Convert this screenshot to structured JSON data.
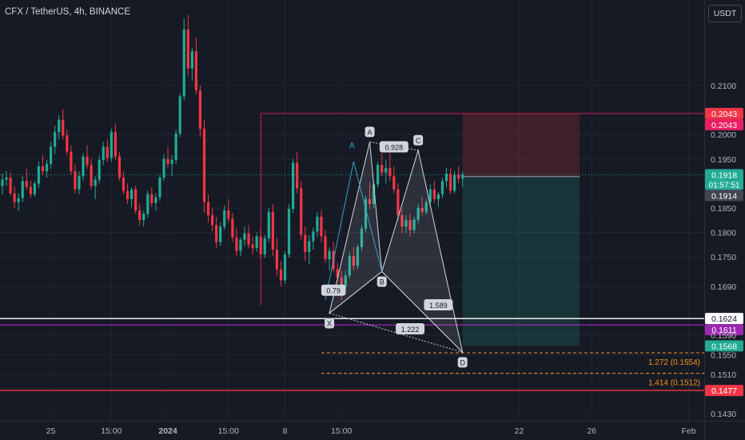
{
  "title": "CFX / TetherUS, 4h, BINANCE",
  "currency": "USDT",
  "colors": {
    "up": "#22ab94",
    "down": "#f23645",
    "bg": "#161a25",
    "grid": "#232632",
    "text": "#b2b5be",
    "pattern": "#d1d4dc",
    "fib": "#f7931a"
  },
  "chart_data": {
    "type": "candlestick",
    "symbol": "CFX / TetherUS",
    "interval": "4h",
    "exchange": "BINANCE",
    "ylim": [
      0.1415,
      0.2275
    ],
    "y_ticks": [
      0.21,
      0.2,
      0.195,
      0.185,
      0.18,
      0.175,
      0.169,
      0.159,
      0.155,
      0.151,
      0.143
    ],
    "x_ticks": [
      "25",
      "15:00",
      "2024",
      "15:00",
      "8",
      "15:00",
      "22",
      "26",
      "Feb"
    ],
    "x_tick_bars": [
      12,
      27,
      41,
      56,
      70,
      84,
      128,
      146,
      170
    ],
    "bar_count": 172,
    "candles": [
      [
        0.1895,
        0.192,
        0.1878,
        0.1908
      ],
      [
        0.1908,
        0.1925,
        0.1895,
        0.1912
      ],
      [
        0.1912,
        0.1922,
        0.1875,
        0.188
      ],
      [
        0.188,
        0.1895,
        0.185,
        0.1862
      ],
      [
        0.1862,
        0.188,
        0.1845,
        0.187
      ],
      [
        0.187,
        0.1915,
        0.1862,
        0.1905
      ],
      [
        0.1905,
        0.193,
        0.1888,
        0.1893
      ],
      [
        0.1893,
        0.1906,
        0.187,
        0.1878
      ],
      [
        0.1878,
        0.1905,
        0.1872,
        0.19
      ],
      [
        0.19,
        0.1945,
        0.189,
        0.1935
      ],
      [
        0.1935,
        0.1958,
        0.1918,
        0.1925
      ],
      [
        0.1925,
        0.1948,
        0.1912,
        0.194
      ],
      [
        0.194,
        0.1985,
        0.193,
        0.1975
      ],
      [
        0.1975,
        0.2018,
        0.196,
        0.2005
      ],
      [
        0.2005,
        0.204,
        0.199,
        0.203
      ],
      [
        0.203,
        0.2052,
        0.199,
        0.1998
      ],
      [
        0.1998,
        0.201,
        0.1958,
        0.1965
      ],
      [
        0.1965,
        0.1978,
        0.1918,
        0.1925
      ],
      [
        0.1925,
        0.1938,
        0.188,
        0.1888
      ],
      [
        0.1888,
        0.1925,
        0.1878,
        0.1915
      ],
      [
        0.1915,
        0.1962,
        0.1905,
        0.1955
      ],
      [
        0.1955,
        0.1978,
        0.193,
        0.1938
      ],
      [
        0.1938,
        0.195,
        0.1888,
        0.1895
      ],
      [
        0.1895,
        0.1915,
        0.1868,
        0.1908
      ],
      [
        0.1908,
        0.1958,
        0.19,
        0.1948
      ],
      [
        0.1948,
        0.1985,
        0.1938,
        0.1975
      ],
      [
        0.1975,
        0.199,
        0.1945,
        0.1952
      ],
      [
        0.1952,
        0.2012,
        0.1945,
        0.2005
      ],
      [
        0.2005,
        0.2022,
        0.1948,
        0.1955
      ],
      [
        0.1955,
        0.1965,
        0.1905,
        0.1912
      ],
      [
        0.1912,
        0.1925,
        0.1878,
        0.1885
      ],
      [
        0.1885,
        0.19,
        0.1858,
        0.1868
      ],
      [
        0.1868,
        0.1892,
        0.1852,
        0.1888
      ],
      [
        0.1888,
        0.1896,
        0.1838,
        0.1845
      ],
      [
        0.1845,
        0.1858,
        0.1815,
        0.1825
      ],
      [
        0.1825,
        0.1845,
        0.1812,
        0.1838
      ],
      [
        0.1838,
        0.1885,
        0.183,
        0.1878
      ],
      [
        0.1878,
        0.1892,
        0.1852,
        0.186
      ],
      [
        0.186,
        0.188,
        0.1845,
        0.1872
      ],
      [
        0.1872,
        0.1918,
        0.1865,
        0.1912
      ],
      [
        0.1912,
        0.196,
        0.1905,
        0.195
      ],
      [
        0.195,
        0.1975,
        0.1932,
        0.194
      ],
      [
        0.194,
        0.1958,
        0.1915,
        0.1948
      ],
      [
        0.1948,
        0.201,
        0.194,
        0.2002
      ],
      [
        0.2002,
        0.2085,
        0.1995,
        0.2078
      ],
      [
        0.2078,
        0.2238,
        0.207,
        0.2215
      ],
      [
        0.2215,
        0.2245,
        0.212,
        0.2135
      ],
      [
        0.2135,
        0.2178,
        0.211,
        0.217
      ],
      [
        0.217,
        0.2198,
        0.2082,
        0.209
      ],
      [
        0.209,
        0.21,
        0.1995,
        0.2012
      ],
      [
        0.2012,
        0.203,
        0.184,
        0.1862
      ],
      [
        0.1862,
        0.1878,
        0.182,
        0.1835
      ],
      [
        0.1835,
        0.185,
        0.1802,
        0.1815
      ],
      [
        0.1815,
        0.1832,
        0.1768,
        0.178
      ],
      [
        0.178,
        0.182,
        0.1772,
        0.1812
      ],
      [
        0.1812,
        0.1855,
        0.1805,
        0.1845
      ],
      [
        0.1845,
        0.1868,
        0.182,
        0.1828
      ],
      [
        0.1828,
        0.184,
        0.178,
        0.179
      ],
      [
        0.179,
        0.1808,
        0.1752,
        0.1762
      ],
      [
        0.1762,
        0.179,
        0.1752,
        0.1785
      ],
      [
        0.1785,
        0.1812,
        0.1772,
        0.1798
      ],
      [
        0.1798,
        0.1815,
        0.1768,
        0.1775
      ],
      [
        0.1775,
        0.1792,
        0.1755,
        0.1768
      ],
      [
        0.1768,
        0.18,
        0.176,
        0.1792
      ],
      [
        0.1792,
        0.1808,
        0.1745,
        0.1755
      ],
      [
        0.1755,
        0.1795,
        0.1748,
        0.1788
      ],
      [
        0.1788,
        0.185,
        0.178,
        0.1842
      ],
      [
        0.1842,
        0.1858,
        0.1752,
        0.1765
      ],
      [
        0.1765,
        0.179,
        0.1712,
        0.1725
      ],
      [
        0.1725,
        0.1742,
        0.169,
        0.1702
      ],
      [
        0.1702,
        0.1762,
        0.1695,
        0.1755
      ],
      [
        0.1755,
        0.1858,
        0.1748,
        0.1848
      ],
      [
        0.1848,
        0.195,
        0.184,
        0.1942
      ],
      [
        0.1942,
        0.1965,
        0.188,
        0.189
      ],
      [
        0.189,
        0.1905,
        0.1785,
        0.1795
      ],
      [
        0.1795,
        0.1812,
        0.1742,
        0.176
      ],
      [
        0.176,
        0.1795,
        0.1735,
        0.1782
      ],
      [
        0.1782,
        0.181,
        0.1765,
        0.1802
      ],
      [
        0.1802,
        0.1842,
        0.179,
        0.1832
      ],
      [
        0.1832,
        0.1845,
        0.178,
        0.1792
      ],
      [
        0.1792,
        0.1805,
        0.1738,
        0.1745
      ],
      [
        0.1745,
        0.177,
        0.1722,
        0.1762
      ],
      [
        0.1762,
        0.178,
        0.1718,
        0.1725
      ],
      [
        0.1725,
        0.1738,
        0.1698,
        0.1708
      ],
      [
        0.1708,
        0.1722,
        0.1662,
        0.1688
      ],
      [
        0.1688,
        0.1722,
        0.1675,
        0.1712
      ],
      [
        0.1712,
        0.176,
        0.1705,
        0.1752
      ],
      [
        0.1752,
        0.177,
        0.1722,
        0.1732
      ],
      [
        0.1732,
        0.1775,
        0.1725,
        0.177
      ],
      [
        0.177,
        0.1815,
        0.1762,
        0.1808
      ],
      [
        0.1808,
        0.1875,
        0.18,
        0.1868
      ],
      [
        0.1868,
        0.1902,
        0.1848,
        0.1858
      ],
      [
        0.1858,
        0.1905,
        0.185,
        0.1898
      ],
      [
        0.1898,
        0.1945,
        0.1892,
        0.1938
      ],
      [
        0.1938,
        0.1962,
        0.1915,
        0.1922
      ],
      [
        0.1922,
        0.1948,
        0.19,
        0.1932
      ],
      [
        0.1932,
        0.1962,
        0.1905,
        0.1915
      ],
      [
        0.1915,
        0.1935,
        0.188,
        0.1888
      ],
      [
        0.1888,
        0.19,
        0.1825,
        0.1835
      ],
      [
        0.1835,
        0.1848,
        0.1798,
        0.1812
      ],
      [
        0.1812,
        0.1835,
        0.18,
        0.1825
      ],
      [
        0.1825,
        0.1838,
        0.1792,
        0.1805
      ],
      [
        0.1805,
        0.1832,
        0.1798,
        0.1826
      ],
      [
        0.1826,
        0.1858,
        0.1818,
        0.185
      ],
      [
        0.185,
        0.1872,
        0.1835,
        0.1842
      ],
      [
        0.1842,
        0.1868,
        0.1836,
        0.1862
      ],
      [
        0.1862,
        0.1898,
        0.1855,
        0.1888
      ],
      [
        0.1888,
        0.1905,
        0.186,
        0.1868
      ],
      [
        0.1868,
        0.1882,
        0.1852,
        0.1878
      ],
      [
        0.1878,
        0.1912,
        0.187,
        0.1905
      ],
      [
        0.1905,
        0.1932,
        0.1892,
        0.192
      ],
      [
        0.192,
        0.1932,
        0.1878,
        0.1885
      ],
      [
        0.1885,
        0.1925,
        0.188,
        0.1918
      ],
      [
        0.1918,
        0.1935,
        0.19,
        0.191
      ],
      [
        0.191,
        0.1925,
        0.1892,
        0.1918
      ]
    ],
    "price_labels": [
      {
        "value": "0.2043",
        "price": 0.2043,
        "color": "#f23645"
      },
      {
        "value": "0.2043",
        "price": 0.2043,
        "color": "#e91e63"
      },
      {
        "value": "0.1918",
        "price": 0.1918,
        "color": "#22ab94",
        "countdown": "01:57:51"
      },
      {
        "value": "0.1914",
        "price": 0.1914,
        "color": "#434651"
      },
      {
        "value": "0.1624",
        "price": 0.1624,
        "color": "#ffffff"
      },
      {
        "value": "0.1611",
        "price": 0.1611,
        "color": "#9c27b0"
      },
      {
        "value": "0.1568",
        "price": 0.1568,
        "color": "#22ab94"
      },
      {
        "value": "0.1477",
        "price": 0.1477,
        "color": "#f23645"
      }
    ],
    "horizontal_lines": [
      {
        "price": 0.1624,
        "color": "#ffffff"
      },
      {
        "price": 0.1611,
        "color": "#9c27b0"
      },
      {
        "price": 0.1477,
        "color": "#f23645"
      }
    ],
    "position": {
      "entry": 0.1914,
      "stop": 0.2043,
      "target": 0.1568,
      "from_bar": 114,
      "to_bar": 143
    },
    "harmonic": {
      "points": [
        {
          "label": "X",
          "bar": 81,
          "price": 0.1635
        },
        {
          "label": "A",
          "bar": 91,
          "price": 0.1985
        },
        {
          "label": "B",
          "bar": 94,
          "price": 0.172
        },
        {
          "label": "C",
          "bar": 103,
          "price": 0.1968
        },
        {
          "label": "D",
          "bar": 114,
          "price": 0.1555
        }
      ],
      "ratios": [
        {
          "text": "0.928",
          "bar": 97,
          "price": 0.1975
        },
        {
          "text": "0.79",
          "bar": 82,
          "price": 0.1682
        },
        {
          "text": "1.589",
          "bar": 108,
          "price": 0.1652
        },
        {
          "text": "1.222",
          "bar": 101,
          "price": 0.1603
        }
      ]
    },
    "inner_pattern": {
      "label": "A",
      "points": [
        [
          80,
          0.1662
        ],
        [
          87,
          0.1945
        ],
        [
          94,
          0.172
        ]
      ]
    },
    "fib_extensions": [
      {
        "text": "1.272 (0.1554)",
        "price": 0.1554
      },
      {
        "text": "1.414 (0.1512)",
        "price": 0.1512
      }
    ],
    "range_box": {
      "top_price": 0.2043,
      "from_bar": 64,
      "to_bar": 172
    }
  }
}
